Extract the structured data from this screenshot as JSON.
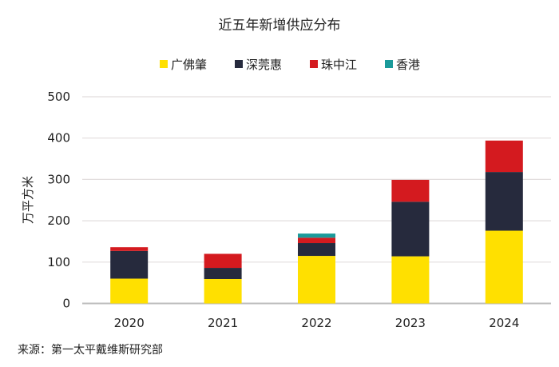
{
  "chart_data": {
    "type": "bar",
    "stacked": true,
    "title": "近五年新增供应分布",
    "xlabel": "",
    "ylabel": "万平方米",
    "ylim": [
      0,
      500
    ],
    "yticks": [
      0,
      100,
      200,
      300,
      400,
      500
    ],
    "categories": [
      "2020",
      "2021",
      "2022",
      "2023",
      "2024"
    ],
    "series": [
      {
        "name": "广佛肇",
        "color": "#FFE000",
        "values": [
          60,
          59,
          115,
          114,
          176
        ]
      },
      {
        "name": "深莞惠",
        "color": "#262A3D",
        "values": [
          67,
          27,
          31,
          132,
          142
        ]
      },
      {
        "name": "珠中江",
        "color": "#D41A1F",
        "values": [
          9,
          34,
          13,
          53,
          76
        ]
      },
      {
        "name": "香港",
        "color": "#1A9A9A",
        "values": [
          0,
          0,
          10,
          0,
          0
        ]
      }
    ],
    "legend_position": "top",
    "grid": true,
    "source": "来源：第一太平戴维斯研究部"
  }
}
